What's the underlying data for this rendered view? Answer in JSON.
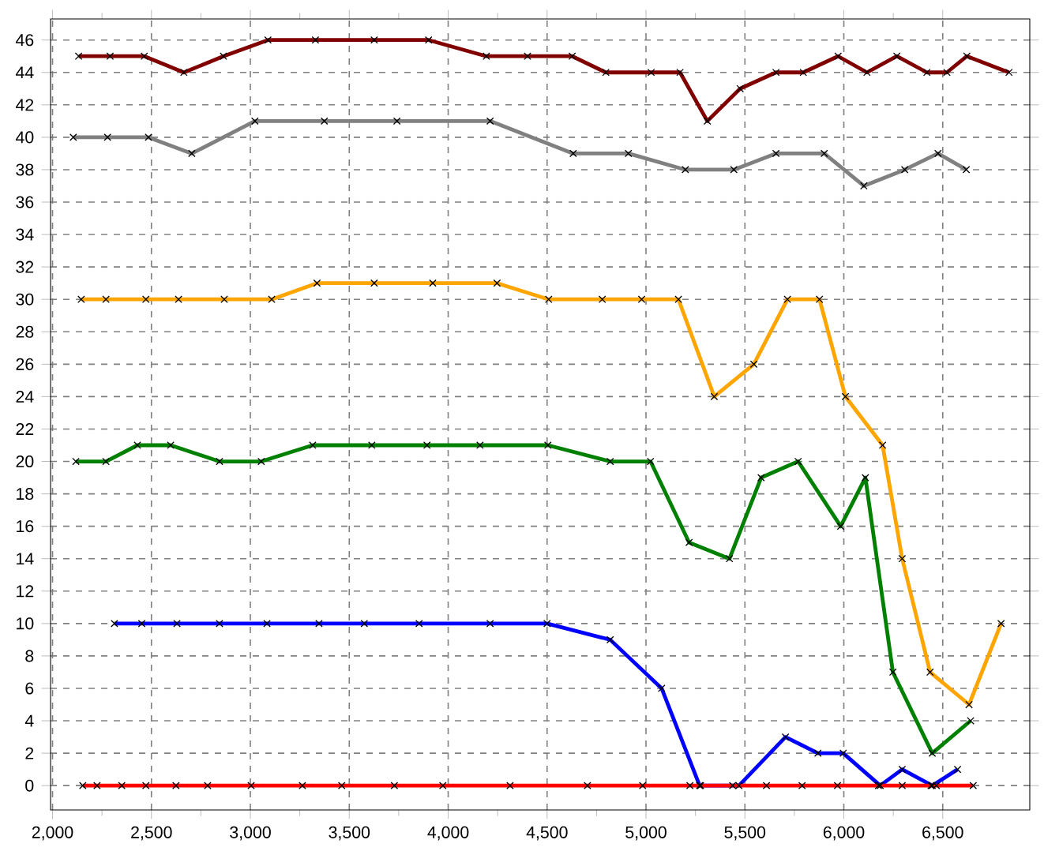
{
  "chart_data": {
    "type": "line",
    "marker": "cross",
    "line_style": "solid",
    "grid": true,
    "xlim": [
      1990,
      6940
    ],
    "ylim": [
      -1.5,
      47.3
    ],
    "xticks": [
      {
        "value": 2000,
        "label": "2,000"
      },
      {
        "value": 2500,
        "label": "2,500"
      },
      {
        "value": 3000,
        "label": "3,000"
      },
      {
        "value": 3500,
        "label": "3,500"
      },
      {
        "value": 4000,
        "label": "4,000"
      },
      {
        "value": 4500,
        "label": "4,500"
      },
      {
        "value": 5000,
        "label": "5,000"
      },
      {
        "value": 5500,
        "label": "5,500"
      },
      {
        "value": 6000,
        "label": "6,000"
      },
      {
        "value": 6500,
        "label": "6,500"
      }
    ],
    "yticks": [
      0,
      2,
      4,
      6,
      8,
      10,
      12,
      14,
      16,
      18,
      20,
      22,
      24,
      26,
      28,
      30,
      32,
      34,
      36,
      38,
      40,
      42,
      44,
      46
    ],
    "series": [
      {
        "color": "#800000",
        "x": [
          2132,
          2291,
          2464,
          2664,
          2864,
          3089,
          3329,
          3626,
          3901,
          4193,
          4401,
          4627,
          4797,
          5026,
          5172,
          5310,
          5476,
          5657,
          5795,
          5971,
          6117,
          6268,
          6420,
          6521,
          6622,
          6835
        ],
        "values": [
          45,
          45,
          45,
          44,
          45,
          46,
          46,
          46,
          46,
          45,
          45,
          45,
          44,
          44,
          44,
          41,
          43,
          44,
          44,
          45,
          44,
          45,
          44,
          44,
          45,
          44
        ]
      },
      {
        "color": "#808080",
        "x": [
          2105,
          2278,
          2485,
          2704,
          3023,
          3374,
          3741,
          4212,
          4632,
          4911,
          5199,
          5444,
          5657,
          5901,
          6101,
          6308,
          6476,
          6619
        ],
        "values": [
          40,
          40,
          40,
          39,
          41,
          41,
          41,
          41,
          39,
          39,
          38,
          38,
          39,
          39,
          37,
          38,
          39,
          38
        ]
      },
      {
        "color": "#ffa500",
        "x": [
          2145,
          2270,
          2472,
          2637,
          2868,
          3108,
          3337,
          3626,
          3922,
          4247,
          4508,
          4779,
          4978,
          5164,
          5345,
          5545,
          5715,
          5877,
          6008,
          6196,
          6295,
          6436,
          6633,
          6795
        ],
        "values": [
          30,
          30,
          30,
          30,
          30,
          30,
          31,
          31,
          31,
          31,
          30,
          30,
          30,
          30,
          24,
          26,
          30,
          30,
          24,
          21,
          14,
          7,
          5,
          10
        ]
      },
      {
        "color": "#008000",
        "x": [
          2118,
          2270,
          2429,
          2597,
          2844,
          3055,
          3315,
          3614,
          3893,
          4161,
          4504,
          4819,
          5023,
          5218,
          5422,
          5582,
          5769,
          5984,
          6109,
          6248,
          6447,
          6641
        ],
        "values": [
          20,
          20,
          21,
          21,
          20,
          20,
          21,
          21,
          21,
          21,
          21,
          20,
          20,
          15,
          14,
          19,
          20,
          16,
          19,
          7,
          2,
          4
        ]
      },
      {
        "color": "#0000ff",
        "x": [
          2313,
          2451,
          2629,
          2844,
          3084,
          3347,
          3576,
          3853,
          4212,
          4500,
          4819,
          5079,
          5271,
          5470,
          5705,
          5869,
          5997,
          6184,
          6295,
          6447,
          6575
        ],
        "values": [
          10,
          10,
          10,
          10,
          10,
          10,
          10,
          10,
          10,
          10,
          9,
          6,
          0,
          0,
          3,
          2,
          2,
          0,
          1,
          0,
          1
        ]
      },
      {
        "color": "#ff0000",
        "x": [
          2153,
          2225,
          2350,
          2472,
          2624,
          2784,
          3004,
          3263,
          3462,
          3728,
          3973,
          4313,
          4704,
          4983,
          5222,
          5276,
          5438,
          5609,
          5789,
          5968,
          6175,
          6295,
          6441,
          6468,
          6654
        ],
        "values": [
          0,
          0,
          0,
          0,
          0,
          0,
          0,
          0,
          0,
          0,
          0,
          0,
          0,
          0,
          0,
          0,
          0,
          0,
          0,
          0,
          0,
          0,
          0,
          0,
          0
        ]
      }
    ]
  }
}
